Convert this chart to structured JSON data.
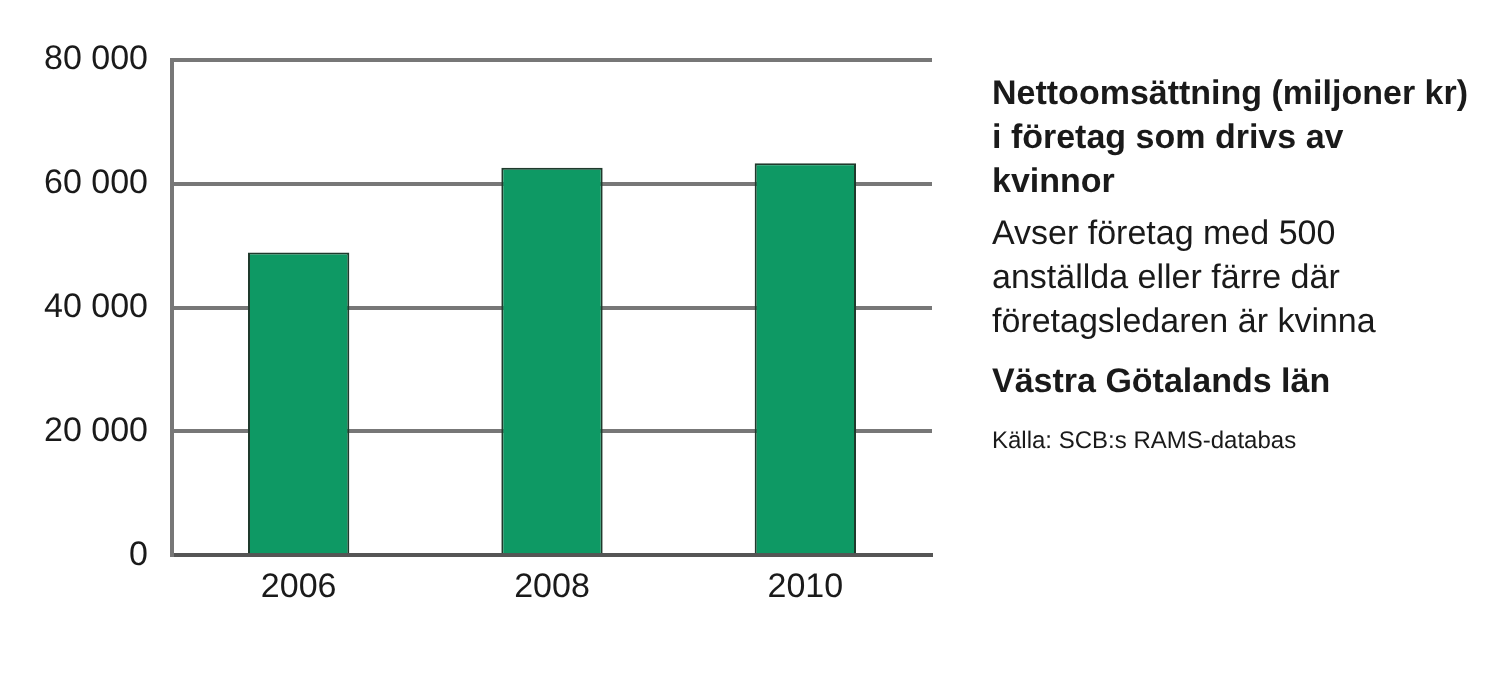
{
  "chart_data": {
    "type": "bar",
    "title": "Nettoomsättning (miljoner kr) i företag som drivs av kvinnor",
    "subtitle": "Avser företag med 500 anställda eller färre där företagsledaren är kvinna",
    "annotations": [
      "Västra Götalands län",
      "Källa: SCB:s RAMS-databas"
    ],
    "categories": [
      "2006",
      "2008",
      "2010"
    ],
    "values": [
      48900,
      62600,
      63300
    ],
    "color": "#0e9964",
    "ylim": [
      0,
      80000
    ],
    "yticks": [
      0,
      {
        "value": 20000,
        "label": "20 000"
      },
      {
        "value": 40000,
        "label": "40 000"
      },
      {
        "value": 60000,
        "label": "60 000"
      },
      {
        "value": 80000,
        "label": "80 000"
      }
    ],
    "grid": "y"
  }
}
